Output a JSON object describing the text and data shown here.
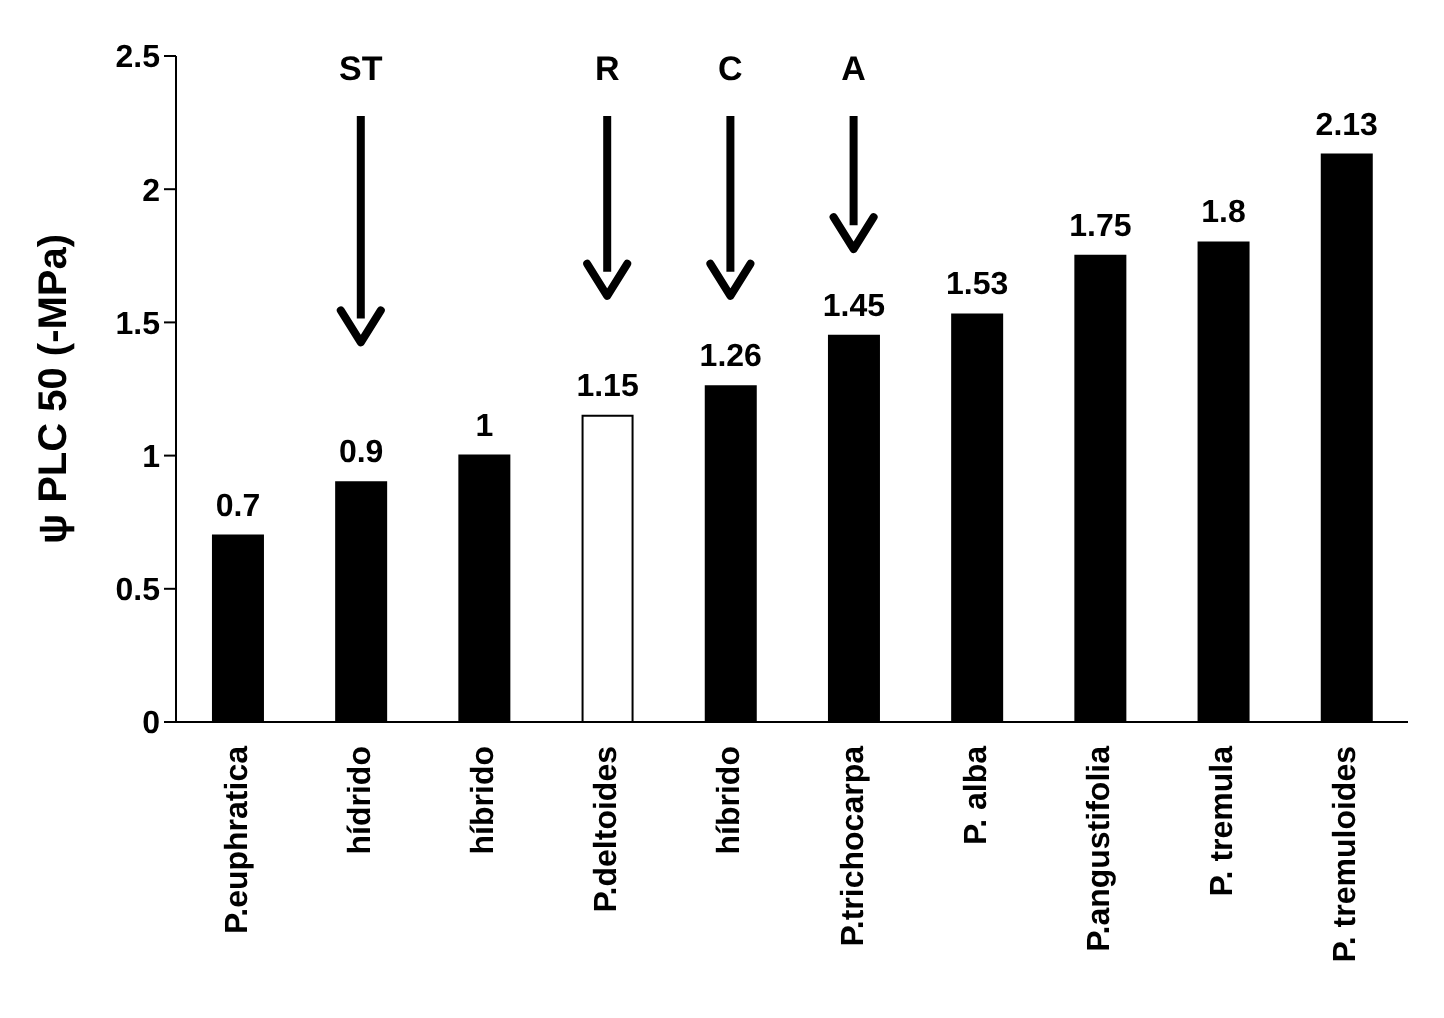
{
  "chart_data": {
    "type": "bar",
    "ylabel": "ψ PLC 50  (-MPa)",
    "categories": [
      "P.euphratica",
      "hídrido",
      "híbrido",
      "P.deltoides",
      "híbrido",
      "P.trichocarpa",
      "P. alba",
      "P.angustifolia",
      "P. tremula",
      "P. tremuloides"
    ],
    "values": [
      0.7,
      0.9,
      1,
      1.15,
      1.26,
      1.45,
      1.53,
      1.75,
      1.8,
      2.13
    ],
    "colors": [
      "#000000",
      "#000000",
      "#000000",
      "#ffffff",
      "#000000",
      "#000000",
      "#000000",
      "#000000",
      "#000000",
      "#000000"
    ],
    "ylim": [
      0,
      2.5
    ],
    "yticks": [
      0,
      0.5,
      1,
      1.5,
      2,
      2.5
    ],
    "data_labels": true,
    "annotations": [
      "ST",
      "R",
      "C",
      "A"
    ]
  }
}
